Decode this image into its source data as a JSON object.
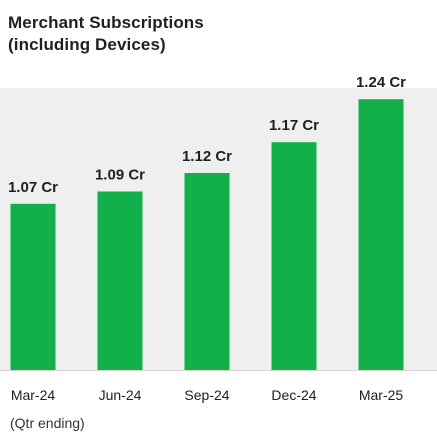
{
  "chart_data": {
    "type": "bar",
    "title": {
      "line1": "Merchant Subscriptions",
      "line2": "(including Devices)"
    },
    "xlabel": "(Qtr ending)",
    "ylabel": "",
    "unit": "Cr",
    "categories": [
      "Mar-24",
      "Jun-24",
      "Sep-24",
      "Dec-24",
      "Mar-25"
    ],
    "values": [
      1.07,
      1.09,
      1.12,
      1.17,
      1.24
    ],
    "data_labels": [
      "1.07 Cr",
      "1.09 Cr",
      "1.12 Cr",
      "1.17 Cr",
      "1.24 Cr"
    ],
    "ylim": [
      0.8,
      1.25
    ],
    "grid": false,
    "legend": "none",
    "colors": {
      "bar": "#12b04b",
      "plot_background": "#efefef",
      "text": "#1f1f1f"
    }
  }
}
